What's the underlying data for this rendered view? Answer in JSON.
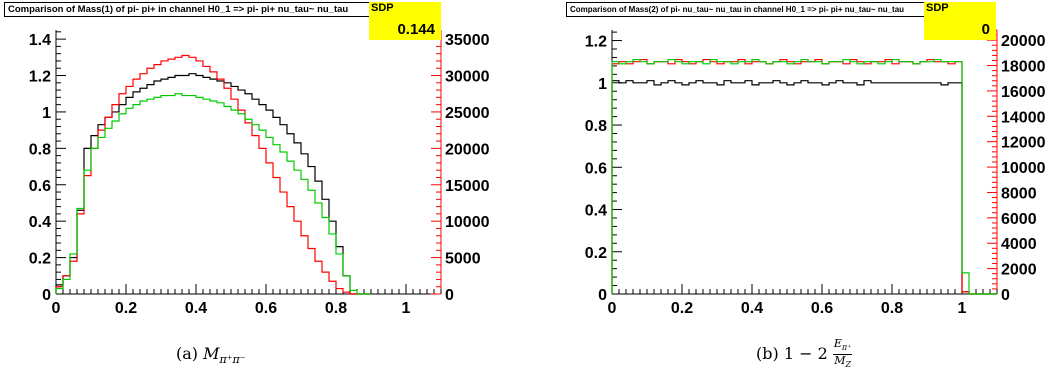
{
  "chart_data": [
    {
      "type": "line",
      "title": "Comparison of Mass(1) of pi- pi+ in channel H0_1 => pi- pi+ nu_tau~ nu_tau",
      "sdp_label": "SDP",
      "sdp_value": "0.144",
      "caption_prefix": "(a)",
      "caption_math": "M",
      "caption_sub": "π⁺π⁻",
      "xlim": [
        0,
        1.1
      ],
      "ylim": [
        0,
        1.45
      ],
      "y2lim": [
        0,
        36250
      ],
      "xticks": [
        "0",
        "0.2",
        "0.4",
        "0.6",
        "0.8",
        "1"
      ],
      "yticks": [
        "0",
        "0.2",
        "0.4",
        "0.6",
        "0.8",
        "1",
        "1.2",
        "1.4"
      ],
      "y2ticks": [
        "0",
        "5000",
        "10000",
        "15000",
        "20000",
        "25000",
        "30000",
        "35000"
      ],
      "bin_width": 0.02,
      "series": [
        {
          "color": "#000000",
          "values": [
            0.05,
            0.1,
            0.2,
            0.46,
            0.8,
            0.87,
            0.93,
            0.97,
            1.0,
            1.04,
            1.08,
            1.11,
            1.13,
            1.15,
            1.17,
            1.18,
            1.19,
            1.2,
            1.2,
            1.21,
            1.2,
            1.19,
            1.18,
            1.17,
            1.16,
            1.14,
            1.12,
            1.1,
            1.07,
            1.04,
            1.01,
            0.97,
            0.93,
            0.88,
            0.83,
            0.77,
            0.7,
            0.62,
            0.52,
            0.4,
            0.26,
            0.1,
            0.0,
            0.0,
            0.0
          ]
        },
        {
          "color": "#ff0000",
          "values": [
            0.04,
            0.1,
            0.18,
            0.44,
            0.65,
            0.8,
            0.9,
            0.97,
            1.04,
            1.1,
            1.14,
            1.18,
            1.21,
            1.24,
            1.26,
            1.28,
            1.29,
            1.3,
            1.31,
            1.3,
            1.28,
            1.25,
            1.22,
            1.18,
            1.13,
            1.07,
            1.01,
            0.94,
            0.87,
            0.8,
            0.72,
            0.64,
            0.56,
            0.48,
            0.4,
            0.32,
            0.25,
            0.18,
            0.12,
            0.07,
            0.03,
            0.01,
            0.0,
            0.0,
            0.0
          ]
        },
        {
          "color": "#00cc00",
          "values": [
            0.03,
            0.08,
            0.22,
            0.47,
            0.68,
            0.8,
            0.86,
            0.91,
            0.95,
            0.99,
            1.02,
            1.04,
            1.06,
            1.07,
            1.08,
            1.09,
            1.09,
            1.1,
            1.09,
            1.09,
            1.08,
            1.07,
            1.06,
            1.05,
            1.03,
            1.01,
            0.99,
            0.96,
            0.93,
            0.9,
            0.86,
            0.82,
            0.78,
            0.73,
            0.68,
            0.63,
            0.57,
            0.5,
            0.42,
            0.33,
            0.22,
            0.1,
            0.02,
            0.0,
            0.0
          ]
        }
      ]
    },
    {
      "type": "line",
      "title": "Comparison of Mass(2) of pi- nu_tau~ nu_tau in channel H0_1 => pi- pi+ nu_tau~ nu_tau",
      "sdp_label": "SDP",
      "sdp_value": "0",
      "caption_prefix": "(b)",
      "caption_math": "1 − 2",
      "caption_num": "E",
      "caption_num_sub": "π⁺",
      "caption_den": "M",
      "caption_den_sub": "Z",
      "xlim": [
        0,
        1.1
      ],
      "ylim": [
        0,
        1.25
      ],
      "y2lim": [
        0,
        20800
      ],
      "xticks": [
        "0",
        "0.2",
        "0.4",
        "0.6",
        "0.8",
        "1"
      ],
      "yticks": [
        "0",
        "0.2",
        "0.4",
        "0.6",
        "0.8",
        "1",
        "1.2"
      ],
      "y2ticks": [
        "0",
        "2000",
        "4000",
        "6000",
        "8000",
        "10000",
        "12000",
        "14000",
        "16000",
        "18000",
        "20000"
      ],
      "bin_width": 0.02,
      "series": [
        {
          "color": "#000000",
          "values": [
            1.01,
            1.0,
            1.01,
            1.0,
            1.0,
            1.01,
            0.99,
            1.0,
            1.01,
            1.0,
            0.99,
            1.0,
            1.01,
            1.0,
            1.0,
            0.99,
            1.01,
            1.0,
            1.0,
            1.01,
            0.99,
            1.0,
            1.0,
            1.01,
            1.0,
            0.99,
            1.0,
            1.01,
            1.0,
            1.0,
            0.99,
            1.0,
            1.01,
            1.0,
            1.0,
            0.99,
            1.01,
            1.0,
            1.0,
            1.0,
            1.0,
            1.0,
            1.0,
            1.0,
            1.0,
            1.0,
            1.0,
            0.99,
            1.0,
            1.0,
            0.01,
            0.0,
            0.0,
            0.0,
            0.0
          ]
        },
        {
          "color": "#ff0000",
          "values": [
            1.09,
            1.1,
            1.09,
            1.1,
            1.11,
            1.09,
            1.1,
            1.1,
            1.09,
            1.11,
            1.1,
            1.09,
            1.1,
            1.11,
            1.1,
            1.09,
            1.1,
            1.1,
            1.11,
            1.09,
            1.1,
            1.1,
            1.09,
            1.1,
            1.11,
            1.1,
            1.09,
            1.1,
            1.1,
            1.11,
            1.09,
            1.1,
            1.1,
            1.09,
            1.11,
            1.1,
            1.09,
            1.1,
            1.1,
            1.11,
            1.09,
            1.1,
            1.1,
            1.09,
            1.1,
            1.11,
            1.1,
            1.1,
            1.09,
            1.1,
            0.01,
            0.0,
            0.0,
            0.0,
            0.0
          ]
        },
        {
          "color": "#00cc00",
          "values": [
            1.1,
            1.09,
            1.1,
            1.11,
            1.1,
            1.09,
            1.1,
            1.1,
            1.11,
            1.1,
            1.09,
            1.1,
            1.1,
            1.09,
            1.11,
            1.1,
            1.1,
            1.09,
            1.1,
            1.1,
            1.11,
            1.1,
            1.09,
            1.1,
            1.1,
            1.09,
            1.1,
            1.11,
            1.1,
            1.1,
            1.09,
            1.1,
            1.1,
            1.11,
            1.1,
            1.09,
            1.1,
            1.1,
            1.09,
            1.1,
            1.11,
            1.1,
            1.1,
            1.09,
            1.1,
            1.1,
            1.11,
            1.1,
            1.1,
            1.1,
            0.1,
            0.0,
            0.0,
            0.0,
            0.0
          ]
        }
      ]
    }
  ]
}
